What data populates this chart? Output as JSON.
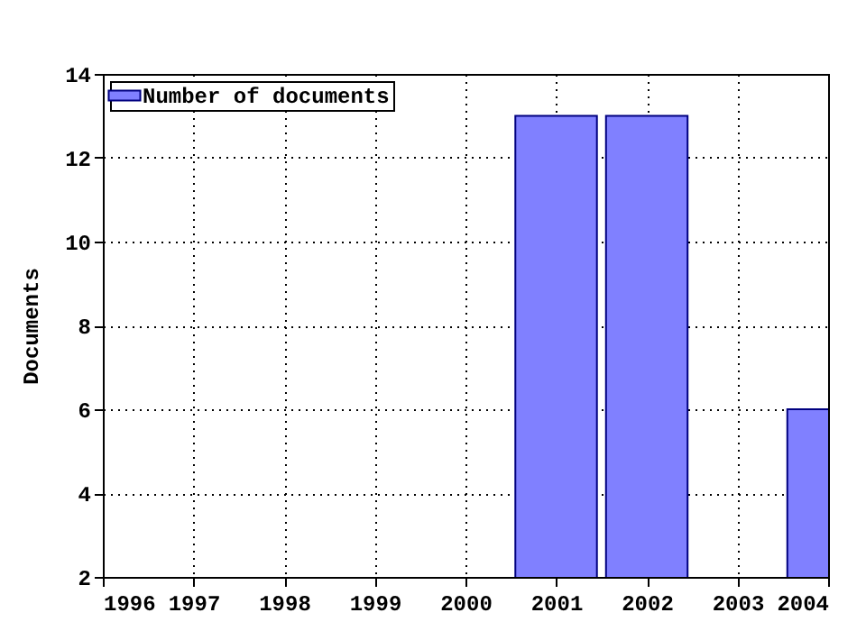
{
  "chart_data": {
    "type": "bar",
    "ylabel": "Documents",
    "x": [
      2001,
      2002,
      2004
    ],
    "series": [
      {
        "name": "Number of documents",
        "color": "#8080ff",
        "values": [
          13,
          13,
          6
        ]
      }
    ],
    "xlim": [
      1996,
      2004
    ],
    "xticks": [
      1996,
      1997,
      1998,
      1999,
      2000,
      2001,
      2002,
      2003,
      2004
    ],
    "ylim": [
      2,
      14
    ],
    "yticks": [
      2,
      4,
      6,
      8,
      10,
      12,
      14
    ],
    "grid": true,
    "legend": "top left",
    "line_style": "dotted"
  }
}
